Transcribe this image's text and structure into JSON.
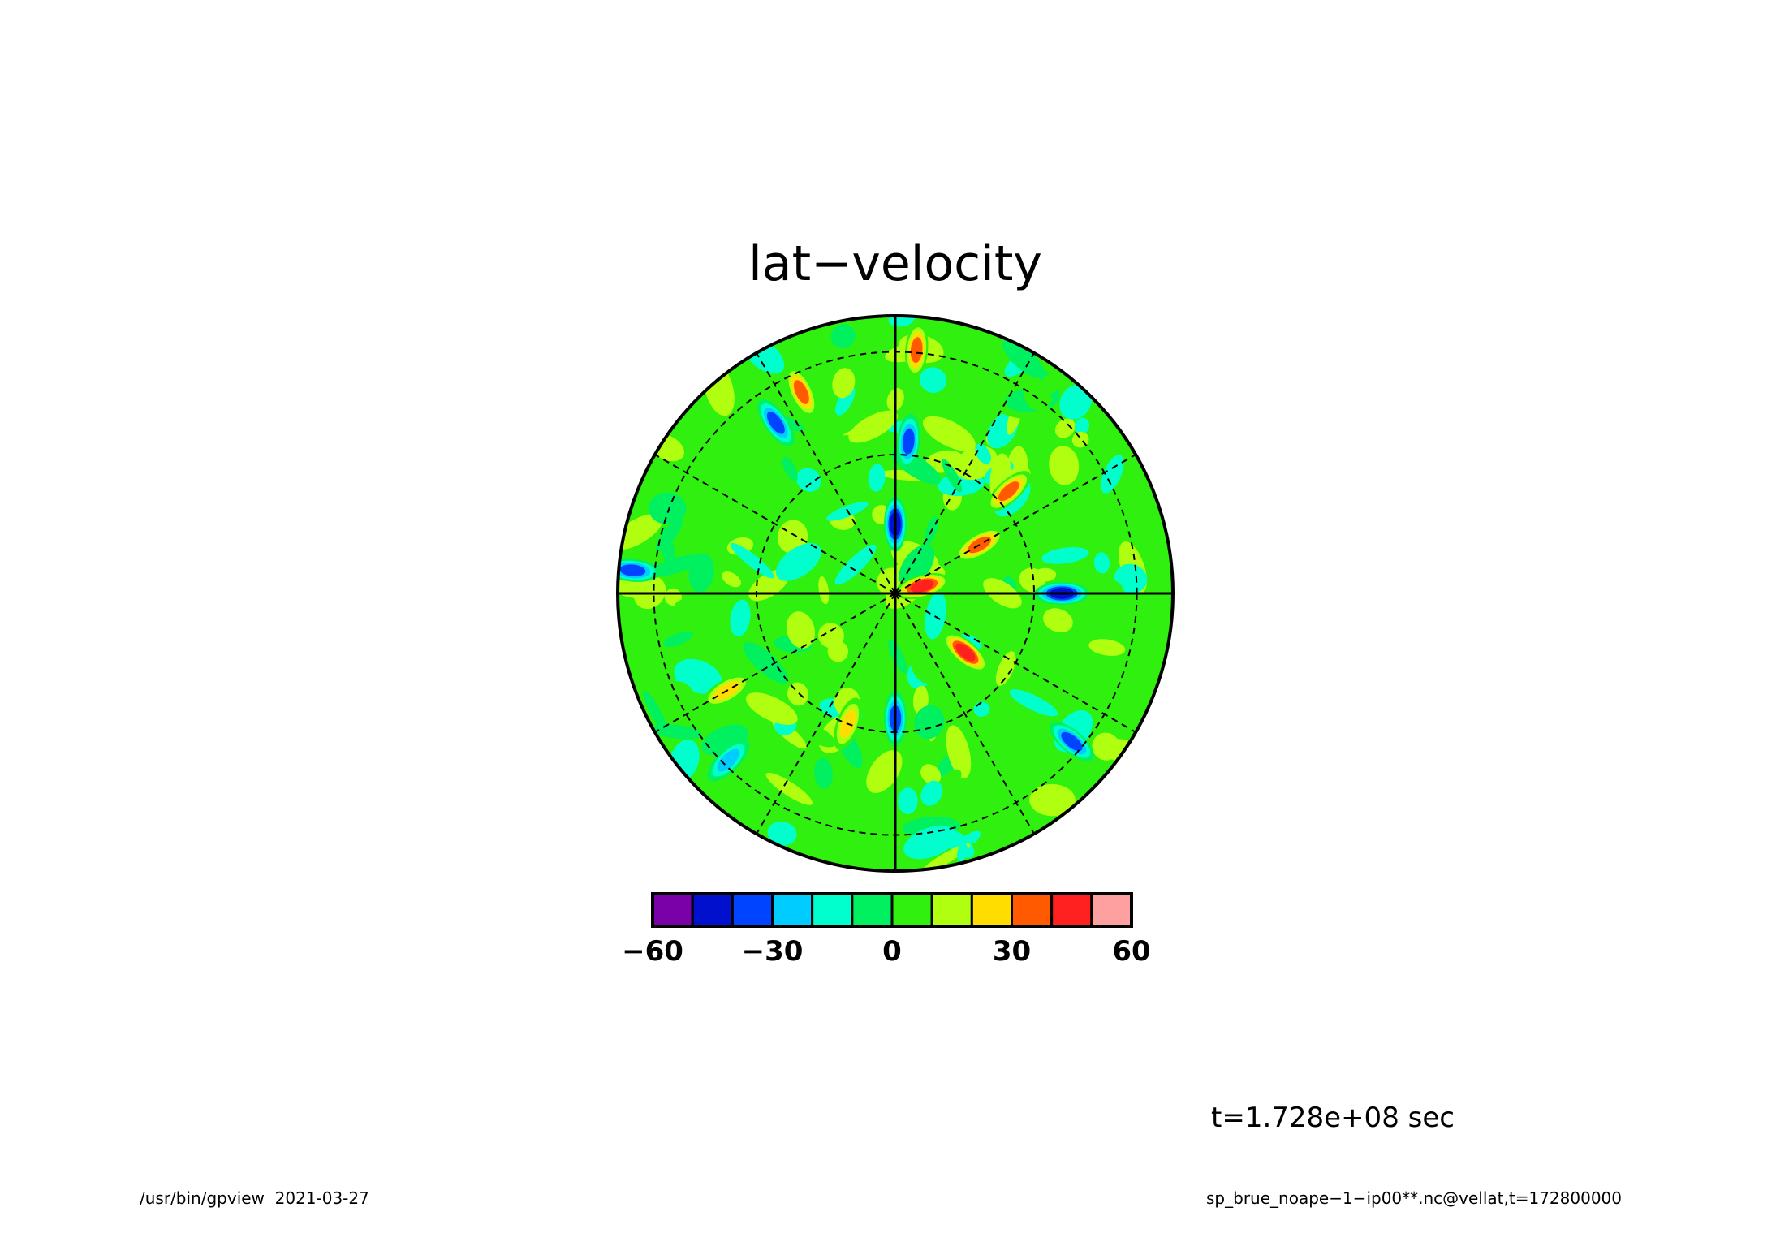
{
  "title": "lat−velocity",
  "time_label": "t=1.728e+08 sec",
  "footer_left": "/usr/bin/gpview  2021-03-27",
  "footer_right": "sp_brue_noape−1−ip00**.nc@vellat,t=172800000",
  "colorbar": {
    "colors": [
      "#7a00a8",
      "#0010cc",
      "#0044ff",
      "#00ccff",
      "#00ffcc",
      "#00f060",
      "#30f010",
      "#b0ff10",
      "#ffdd00",
      "#ff5a00",
      "#ff2020",
      "#ffa0a0"
    ],
    "tick_labels": [
      "−60",
      "−30",
      "0",
      "30",
      "60"
    ],
    "tick_values": [
      -60,
      -30,
      0,
      30,
      60
    ],
    "range": [
      -60,
      60
    ]
  },
  "chart_data": {
    "type": "heatmap",
    "projection": "polar-stereographic",
    "title": "lat−velocity",
    "grid": true,
    "color_levels": [
      -60,
      -50,
      -40,
      -30,
      -20,
      -10,
      0,
      10,
      20,
      30,
      40,
      50,
      60
    ],
    "background_value": 5,
    "features": [
      {
        "lon": 75,
        "colat": 0.1,
        "value": 45
      },
      {
        "lon": 60,
        "colat": 0.35,
        "value": 38
      },
      {
        "lon": 130,
        "colat": 0.33,
        "value": 42
      },
      {
        "lon": 48,
        "colat": 0.55,
        "value": 40
      },
      {
        "lon": 0,
        "colat": 0.25,
        "value": -45
      },
      {
        "lon": 5,
        "colat": 0.55,
        "value": -35
      },
      {
        "lon": 90,
        "colat": 0.6,
        "value": -50
      },
      {
        "lon": 180,
        "colat": 0.45,
        "value": -35
      },
      {
        "lon": 200,
        "colat": 0.5,
        "value": 30
      },
      {
        "lon": 130,
        "colat": 0.83,
        "value": -35
      },
      {
        "lon": 335,
        "colat": 0.8,
        "value": 40
      },
      {
        "lon": 325,
        "colat": 0.75,
        "value": -40
      },
      {
        "lon": 5,
        "colat": 0.88,
        "value": 35
      },
      {
        "lon": 275,
        "colat": 0.95,
        "value": -40
      },
      {
        "lon": 225,
        "colat": 0.85,
        "value": -30
      },
      {
        "lon": 240,
        "colat": 0.7,
        "value": 25
      }
    ]
  }
}
